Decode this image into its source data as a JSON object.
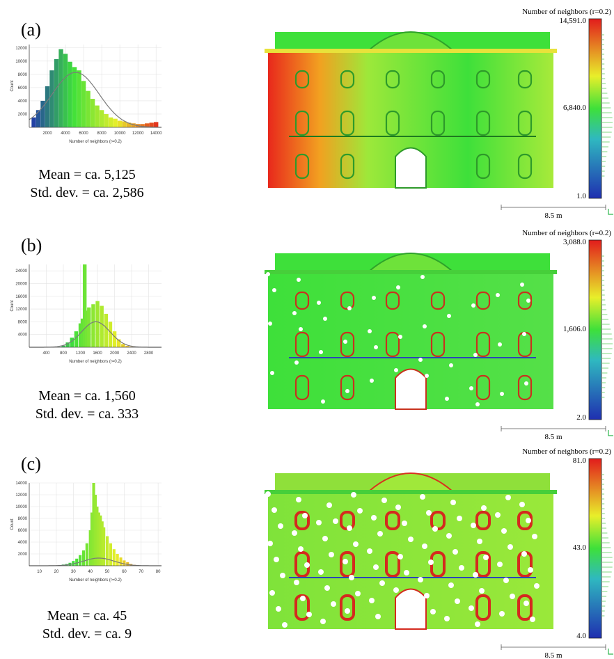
{
  "chart_data": [
    {
      "type": "bar",
      "panel_label": "(a)",
      "xlabel": "Number of neighbors (r=0.2)",
      "ylabel": "Count",
      "xlim": [
        0,
        14600
      ],
      "ylim": [
        0,
        12500
      ],
      "xticks": [
        2000,
        4000,
        6000,
        8000,
        10000,
        12000,
        14000
      ],
      "yticks": [
        2000,
        4000,
        6000,
        8000,
        10000,
        12000
      ],
      "histogram": {
        "x": [
          500,
          1000,
          1500,
          2000,
          2500,
          3000,
          3500,
          4000,
          4500,
          5000,
          5500,
          6000,
          6500,
          7000,
          7500,
          8000,
          8500,
          9000,
          9500,
          10000,
          10500,
          11000,
          11500,
          12000,
          12500,
          13000,
          13500,
          14000
        ],
        "values": [
          1500,
          2600,
          4000,
          6200,
          8600,
          10300,
          11800,
          11100,
          9900,
          9100,
          8600,
          7000,
          5500,
          4300,
          3300,
          2600,
          2000,
          1500,
          1300,
          1000,
          900,
          700,
          600,
          500,
          500,
          600,
          700,
          800
        ]
      },
      "fit": {
        "mean": 5125,
        "std": 2586,
        "peak": 8300
      },
      "stats": [
        "Mean = ca. 5,125",
        "Std. dev. = ca. 2,586"
      ],
      "colorbar": {
        "title": "Number of neighbors (r=0.2)",
        "max": "14,591.0",
        "mid": "6,840.0",
        "min": "1.0"
      },
      "scale": "8.5 m"
    },
    {
      "type": "bar",
      "panel_label": "(b)",
      "xlabel": "Number of neighbors (r=0.2)",
      "ylabel": "Count",
      "xlim": [
        0,
        3100
      ],
      "ylim": [
        0,
        26000
      ],
      "xticks": [
        400,
        800,
        1200,
        1600,
        2000,
        2400,
        2800
      ],
      "yticks": [
        4000,
        8000,
        12000,
        16000,
        20000,
        24000
      ],
      "histogram": {
        "x": [
          700,
          800,
          900,
          1000,
          1100,
          1200,
          1250,
          1300,
          1350,
          1400,
          1500,
          1600,
          1700,
          1800,
          1900,
          2000,
          2100,
          2200,
          2300,
          2400,
          2500
        ],
        "values": [
          100,
          500,
          1500,
          3000,
          5000,
          7500,
          9000,
          26000,
          11500,
          12500,
          13500,
          14500,
          13000,
          10500,
          8000,
          5000,
          2500,
          1000,
          400,
          150,
          50
        ]
      },
      "fit": {
        "mean": 1560,
        "std": 333,
        "peak": 8000
      },
      "stats": [
        "Mean = ca. 1,560",
        "Std. dev. = ca. 333"
      ],
      "colorbar": {
        "title": "Number of neighbors (r=0.2)",
        "max": "3,088.0",
        "mid": "1,606.0",
        "min": "2.0"
      },
      "scale": "8.5 m"
    },
    {
      "type": "bar",
      "panel_label": "(c)",
      "xlabel": "Number of neighbors (r=0.2)",
      "ylabel": "Count",
      "xlim": [
        4,
        82
      ],
      "ylim": [
        0,
        14000
      ],
      "xticks": [
        10,
        20,
        30,
        40,
        50,
        60,
        70,
        80
      ],
      "yticks": [
        2000,
        4000,
        6000,
        8000,
        10000,
        12000,
        14000
      ],
      "histogram": {
        "x": [
          20,
          22,
          24,
          26,
          28,
          30,
          32,
          34,
          36,
          38,
          40,
          41,
          42,
          43,
          44,
          45,
          46,
          47,
          48,
          50,
          52,
          54,
          56,
          58,
          60,
          62,
          64,
          66,
          68,
          70
        ],
        "values": [
          50,
          100,
          200,
          300,
          500,
          800,
          1200,
          1800,
          2600,
          3800,
          6000,
          9000,
          14000,
          12000,
          10000,
          9000,
          8500,
          7500,
          6500,
          5000,
          3800,
          2800,
          2000,
          1400,
          900,
          600,
          300,
          150,
          80,
          40
        ]
      },
      "fit": {
        "mean": 45,
        "std": 9,
        "peak": 1300
      },
      "stats": [
        "Mean = ca. 45",
        "Std. dev. = ca. 9"
      ],
      "colorbar": {
        "title": "Number of neighbors (r=0.2)",
        "max": "81.0",
        "mid": "43.0",
        "min": "4.0"
      },
      "scale": "8.5 m"
    }
  ],
  "colors": {
    "low": "#1f2fb0",
    "green": "#3ee03a",
    "yellow": "#e8ef2a",
    "high": "#e21c1c",
    "fit": "#7a7a7a"
  }
}
